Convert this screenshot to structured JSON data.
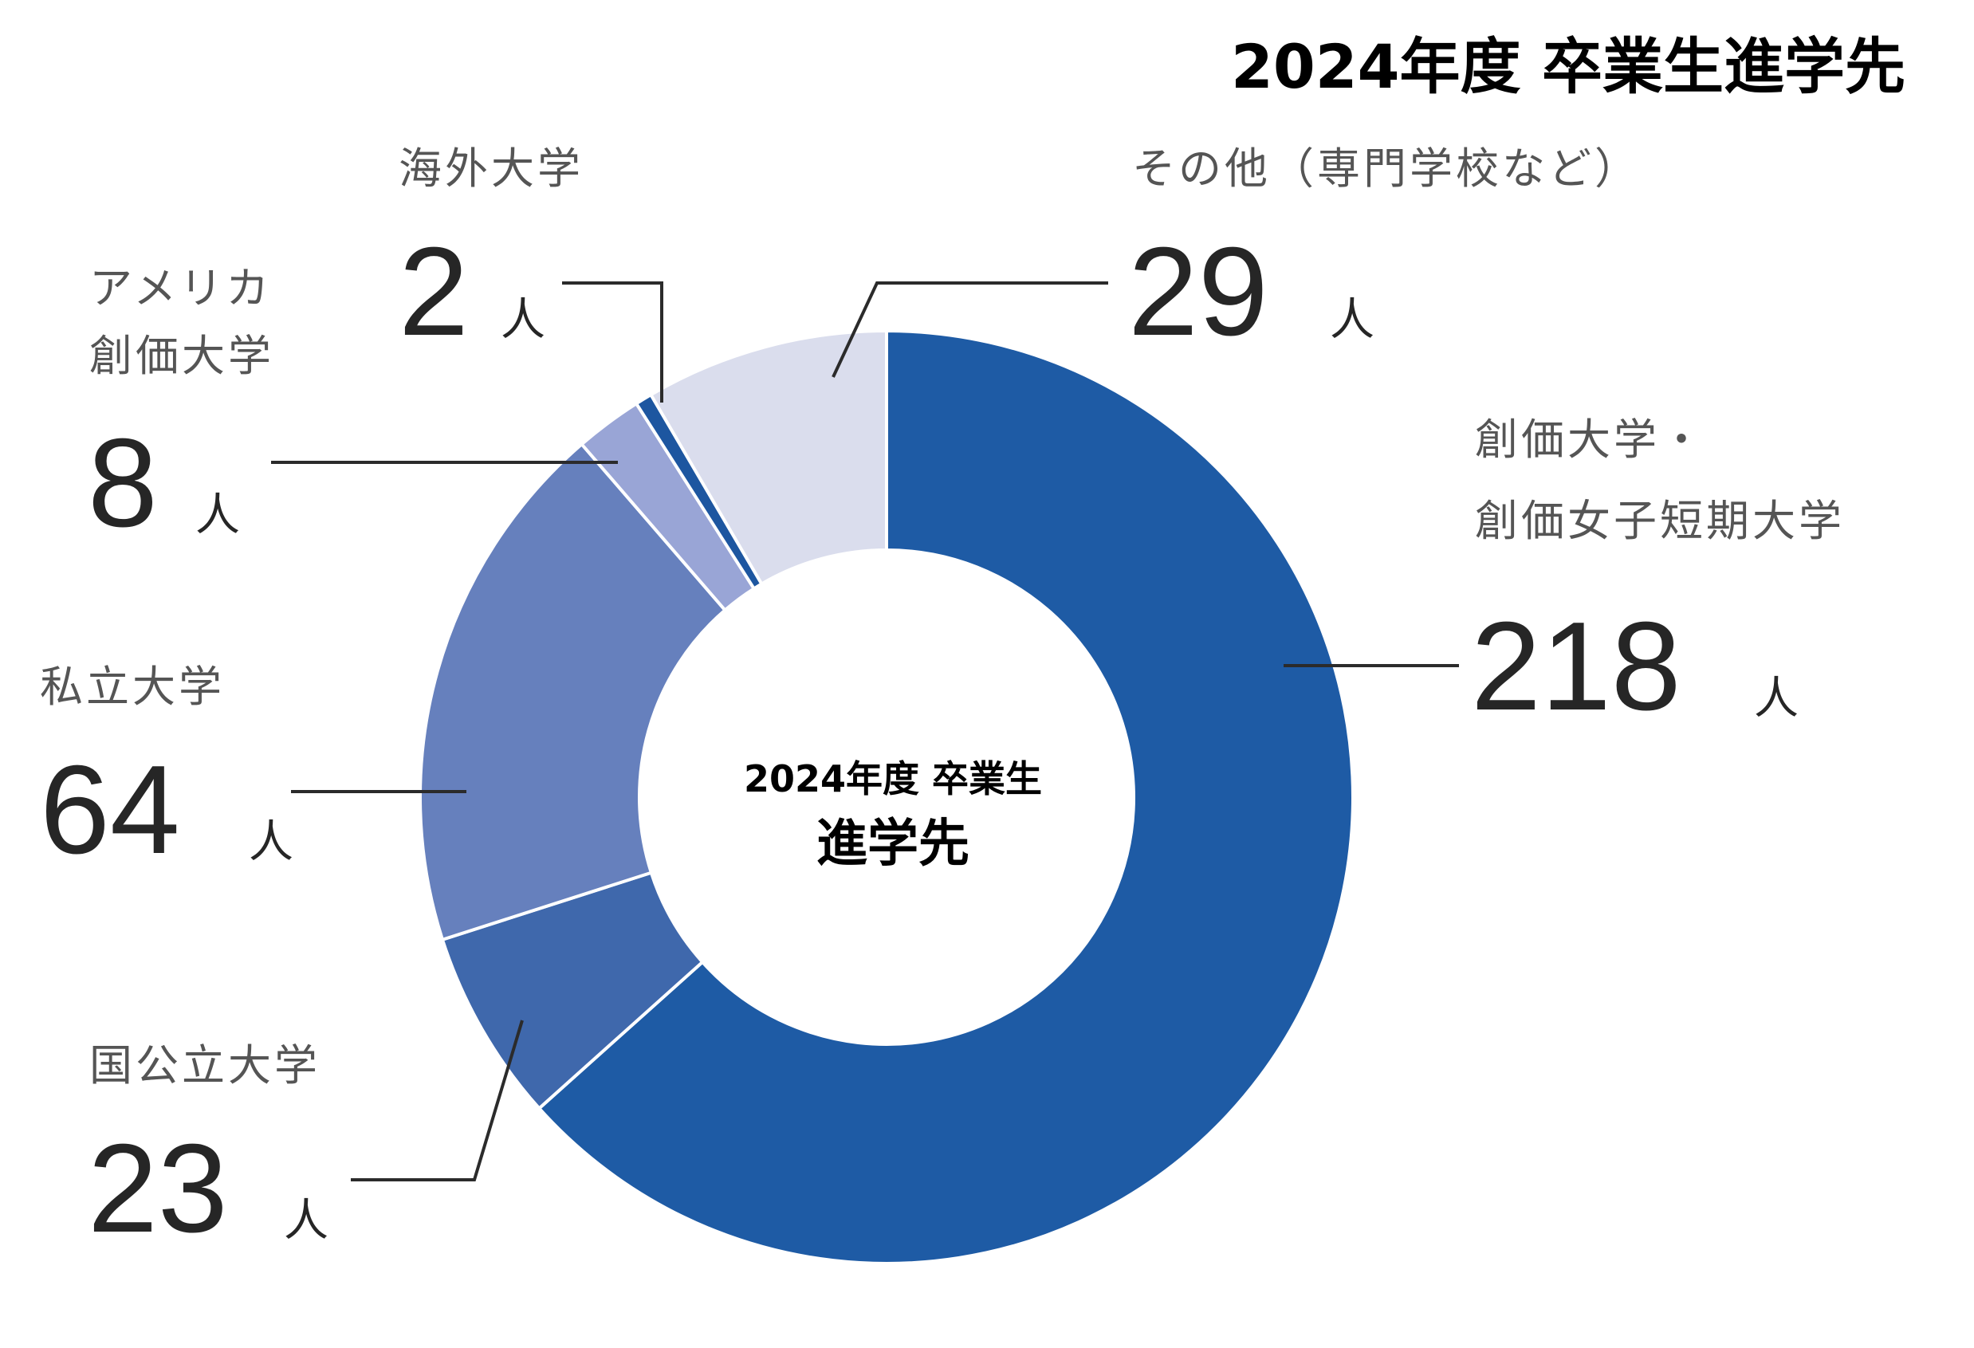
{
  "chart_data": {
    "type": "pie",
    "title": "2024年度 卒業生進学先",
    "center_label": {
      "line1": "2024年度 卒業生",
      "line2": "進学先"
    },
    "unit": "人",
    "slices": [
      {
        "id": "soka",
        "label_lines": [
          "創価大学・",
          "創価女子短期大学"
        ],
        "value": 218,
        "color": "#1e5ba5"
      },
      {
        "id": "national",
        "label_lines": [
          "国公立大学"
        ],
        "value": 23,
        "color": "#3f68ac"
      },
      {
        "id": "private",
        "label_lines": [
          "私立大学"
        ],
        "value": 64,
        "color": "#6680bd"
      },
      {
        "id": "america",
        "label_lines": [
          "アメリカ",
          "創価大学"
        ],
        "value": 8,
        "color": "#99a5d6"
      },
      {
        "id": "overseas",
        "label_lines": [
          "海外大学"
        ],
        "value": 2,
        "color": "#1d56a0"
      },
      {
        "id": "other",
        "label_lines": [
          "その他（専門学校など）"
        ],
        "value": 29,
        "color": "#dadded"
      }
    ]
  }
}
